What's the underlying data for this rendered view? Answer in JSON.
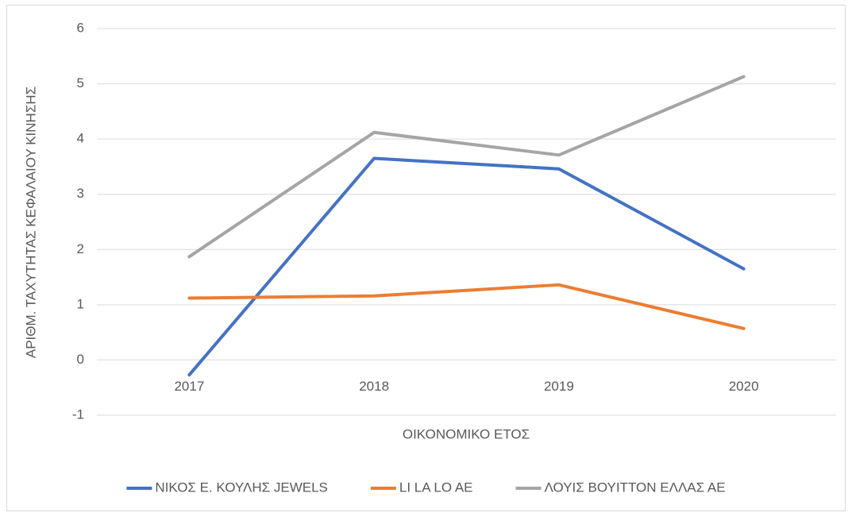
{
  "chart_data": {
    "type": "line",
    "x_label": "ΟΙΚΟΝΟΜΙΚΟ ΕΤΟΣ",
    "y_label": "ΑΡΙΘΜ. ΤΑΧΥΤΗΤΑΣ ΚΕΦΑΛΑΙΟΥ ΚΙΝΗΣΗΣ",
    "categories": [
      "2017",
      "2018",
      "2019",
      "2020"
    ],
    "series": [
      {
        "name": "ΝΙΚΟΣ Ε. ΚΟΥΛΗΣ JEWELS",
        "color": "#4472c4",
        "values": [
          -0.27,
          3.65,
          3.46,
          1.65
        ]
      },
      {
        "name": "LI LA LO AE",
        "color": "#ed7d31",
        "values": [
          1.12,
          1.16,
          1.36,
          0.57
        ]
      },
      {
        "name": "ΛΟΥΙΣ ΒΟΥΙΤΤΟΝ ΕΛΛΑΣ ΑΕ",
        "color": "#a5a5a5",
        "values": [
          1.87,
          4.12,
          3.71,
          5.13
        ]
      }
    ],
    "ylim": [
      -1,
      6
    ],
    "yticks": [
      -1,
      0,
      1,
      2,
      3,
      4,
      5,
      6
    ],
    "grid": true,
    "legend": "bottom"
  }
}
